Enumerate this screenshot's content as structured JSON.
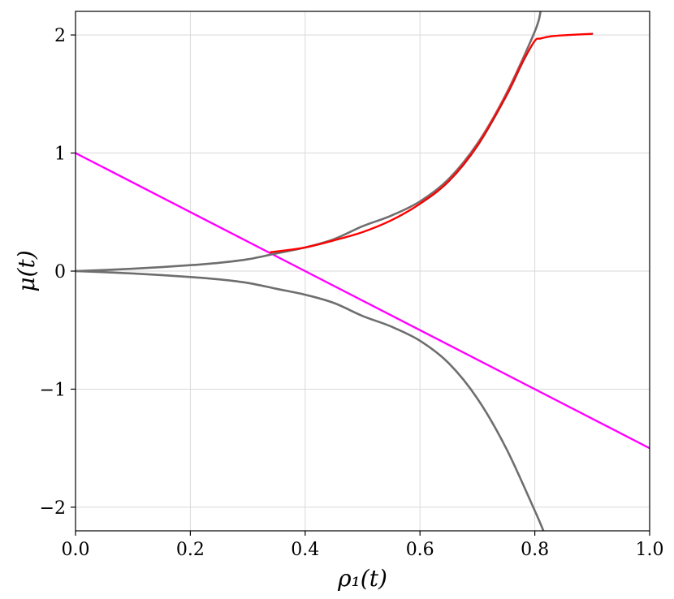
{
  "chart_data": {
    "type": "line",
    "xlabel": "ρ₁(t)",
    "ylabel": "μ(t)",
    "xlim": [
      0.0,
      1.0
    ],
    "ylim": [
      -2.2,
      2.2
    ],
    "xticks": [
      0.0,
      0.2,
      0.4,
      0.6,
      0.8,
      1.0
    ],
    "xtick_labels": [
      "0.0",
      "0.2",
      "0.4",
      "0.6",
      "0.8",
      "1.0"
    ],
    "yticks": [
      -2,
      -1,
      0,
      1,
      2
    ],
    "ytick_labels": [
      "−2",
      "−1",
      "0",
      "1",
      "2"
    ],
    "grid": true,
    "series": [
      {
        "color": "#ff00ff",
        "x": [
          0.0,
          1.0
        ],
        "y": [
          1.0,
          -1.5
        ]
      },
      {
        "color": "#6e6e6e",
        "x": [
          0.0,
          0.05,
          0.1,
          0.15,
          0.2,
          0.25,
          0.3,
          0.35,
          0.4,
          0.45,
          0.5,
          0.55,
          0.6,
          0.65,
          0.7,
          0.75,
          0.8,
          0.81
        ],
        "y": [
          0.0,
          0.009,
          0.02,
          0.034,
          0.05,
          0.07,
          0.1,
          0.15,
          0.2,
          0.27,
          0.38,
          0.47,
          0.59,
          0.78,
          1.08,
          1.5,
          2.03,
          2.2
        ]
      },
      {
        "color": "#6e6e6e",
        "x": [
          0.0,
          0.05,
          0.1,
          0.15,
          0.2,
          0.25,
          0.3,
          0.35,
          0.4,
          0.45,
          0.5,
          0.55,
          0.6,
          0.65,
          0.7,
          0.75,
          0.8,
          0.815
        ],
        "y": [
          0.0,
          -0.009,
          -0.02,
          -0.034,
          -0.05,
          -0.07,
          -0.1,
          -0.15,
          -0.2,
          -0.27,
          -0.38,
          -0.47,
          -0.59,
          -0.78,
          -1.08,
          -1.5,
          -2.03,
          -2.2
        ]
      },
      {
        "color": "#ff0000",
        "x": [
          0.34,
          0.4,
          0.45,
          0.5,
          0.55,
          0.6,
          0.65,
          0.7,
          0.75,
          0.78,
          0.8,
          0.81,
          0.83,
          0.86,
          0.9
        ],
        "y": [
          0.16,
          0.2,
          0.26,
          0.33,
          0.43,
          0.57,
          0.76,
          1.06,
          1.48,
          1.78,
          1.95,
          1.97,
          1.99,
          2.0,
          2.01
        ]
      }
    ]
  }
}
